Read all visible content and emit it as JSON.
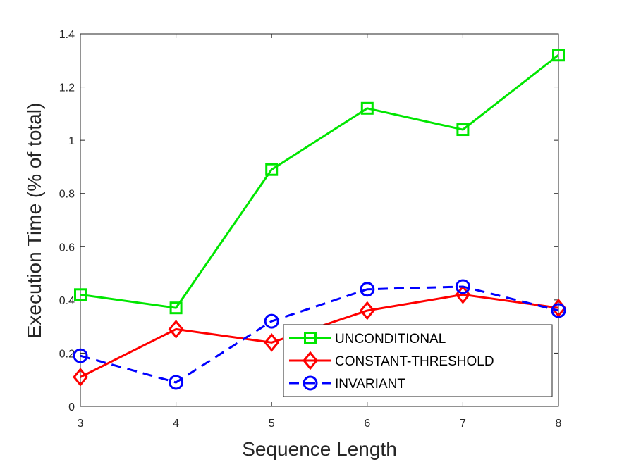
{
  "chart_data": {
    "type": "line",
    "title": "",
    "xlabel": "Sequence Length",
    "ylabel": "Execution Time (% of total)",
    "x": [
      3,
      4,
      5,
      6,
      7,
      8
    ],
    "xlim": [
      3,
      8
    ],
    "ylim": [
      0,
      1.4
    ],
    "xticks": [
      "3",
      "4",
      "5",
      "6",
      "7",
      "8"
    ],
    "yticks": [
      "0",
      "0.2",
      "0.4",
      "0.6",
      "0.8",
      "1",
      "1.2",
      "1.4"
    ],
    "grid": false,
    "legend_position": "bottom-right",
    "series": [
      {
        "name": "UNCONDITIONAL",
        "values": [
          0.42,
          0.37,
          0.89,
          1.12,
          1.04,
          1.32
        ],
        "color": "#00e600",
        "marker": "square",
        "line_style": "solid"
      },
      {
        "name": "CONSTANT-THRESHOLD",
        "values": [
          0.11,
          0.29,
          0.24,
          0.36,
          0.42,
          0.37
        ],
        "color": "#ff0000",
        "marker": "diamond",
        "line_style": "solid"
      },
      {
        "name": "INVARIANT",
        "values": [
          0.19,
          0.09,
          0.32,
          0.44,
          0.45,
          0.36
        ],
        "color": "#0000ff",
        "marker": "circle",
        "line_style": "dashed"
      }
    ]
  }
}
